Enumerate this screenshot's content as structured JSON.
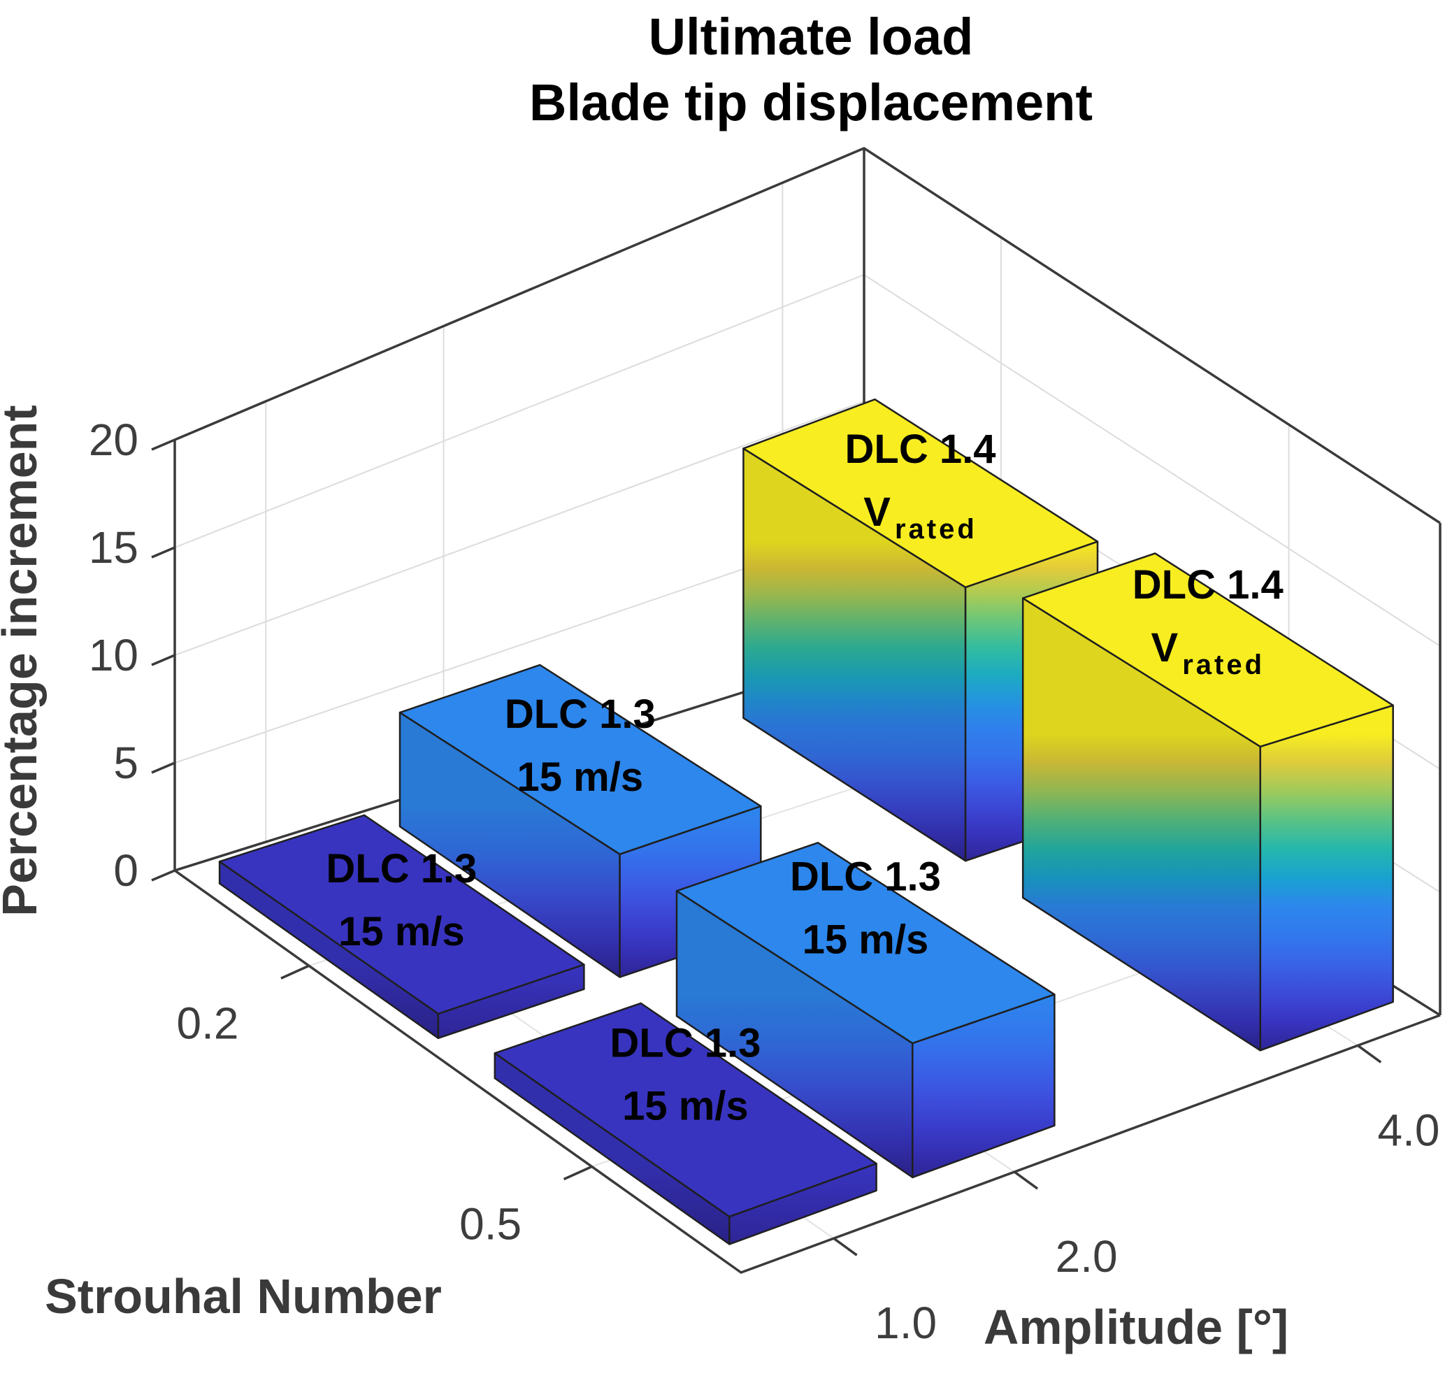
{
  "title": {
    "line1": "Ultimate load",
    "line2": "Blade tip displacement"
  },
  "axes": {
    "z": {
      "label": "Percentage increment",
      "ticks": [
        "0",
        "5",
        "10",
        "15",
        "20"
      ],
      "lim": [
        0,
        20
      ]
    },
    "x": {
      "label": "Amplitude [°]",
      "ticks": [
        "1.0",
        "2.0",
        "4.0"
      ]
    },
    "y": {
      "label": "Strouhal Number",
      "ticks": [
        "0.2",
        "0.5"
      ]
    }
  },
  "chart_data": {
    "type": "bar",
    "variant": "3d-bar",
    "title": "Ultimate load — Blade tip displacement",
    "xlabel": "Amplitude [°]",
    "ylabel": "Strouhal Number",
    "zlabel": "Percentage increment",
    "x_categories": [
      "1.0",
      "2.0",
      "4.0"
    ],
    "y_categories": [
      "0.2",
      "0.5"
    ],
    "zlim": [
      0,
      20
    ],
    "z_gridlines": [
      5,
      10,
      15
    ],
    "grid": true,
    "colormap": "parula",
    "series": [
      {
        "name": "Strouhal 0.2",
        "values": [
          1,
          5,
          11
        ]
      },
      {
        "name": "Strouhal 0.5",
        "values": [
          1,
          5,
          12
        ]
      }
    ],
    "bar_annotations": [
      [
        {
          "line1": "DLC 1.3",
          "line2": "15 m/s"
        },
        {
          "line1": "DLC 1.3",
          "line2": "15 m/s"
        },
        {
          "line1": "DLC 1.4",
          "line2": "V",
          "line2_sub": "rated"
        }
      ],
      [
        {
          "line1": "DLC 1.3",
          "line2": "15 m/s"
        },
        {
          "line1": "DLC 1.3",
          "line2": "15 m/s"
        },
        {
          "line1": "DLC 1.4",
          "line2": "V",
          "line2_sub": "rated"
        }
      ]
    ]
  },
  "colors": {
    "bar_top_low": "#3834C0",
    "bar_top_mid": "#2E86EE",
    "bar_top_high": "#F7ED21",
    "gridline": "#DCDCDC",
    "floor_grid": "#E2E2E2",
    "edge": "#1F1F1F",
    "axis_line": "#3A3A3A",
    "axis_text": "#3D3D3D"
  }
}
